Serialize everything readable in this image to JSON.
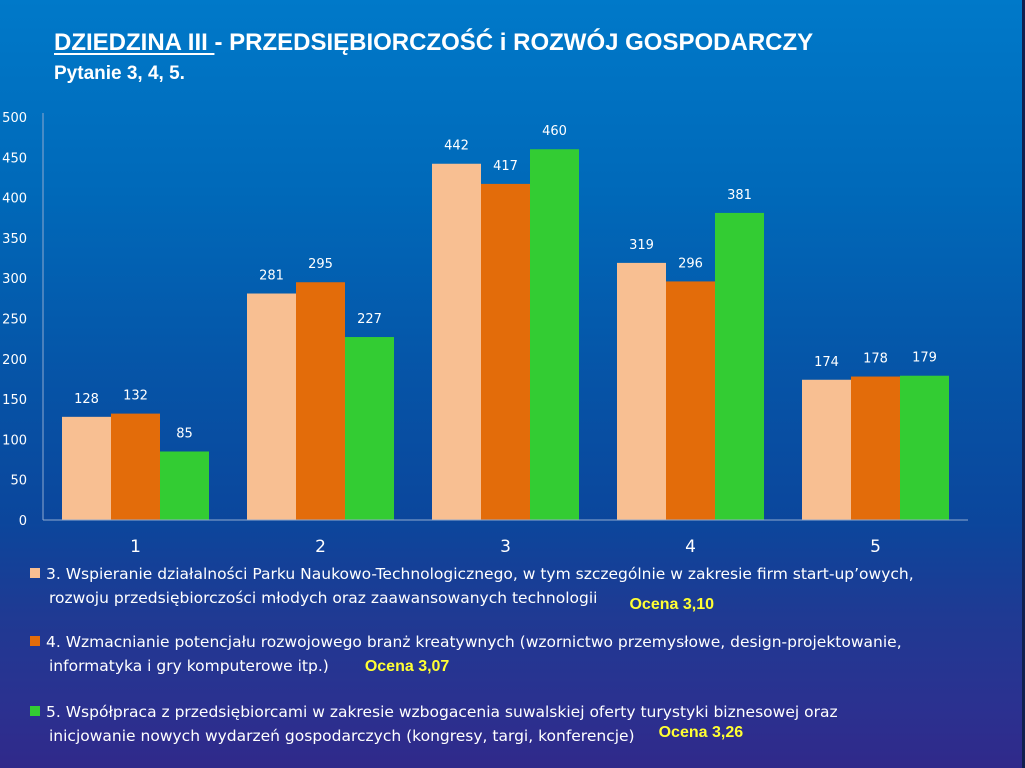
{
  "header": {
    "title_underlined": "DZIEDZINA III ",
    "title_rest": " - PRZEDSIĘBIORCZOŚĆ i ROZWÓJ GOSPODARCZY",
    "subtitle": "Pytanie  3, 4, 5."
  },
  "chart_data": {
    "type": "bar",
    "title": "",
    "xlabel": "",
    "ylabel": "",
    "categories": [
      "1",
      "2",
      "3",
      "4",
      "5"
    ],
    "ylim": [
      0,
      500
    ],
    "yticks": [
      "0",
      "50",
      "100",
      "150",
      "200",
      "250",
      "300",
      "350",
      "400",
      "450",
      "500"
    ],
    "grid": false,
    "legend_position": "bottom",
    "series": [
      {
        "name": "3. Wspieranie działalności Parku Naukowo-Technologicznego, w tym szczególnie w zakresie firm start-up’owych, rozwoju przedsiębiorczości młodych oraz zaawansowanych technologii",
        "line1": "3. Wspieranie działalności Parku Naukowo-Technologicznego, w tym szczególnie w zakresie firm start-up’owych,",
        "line2": "rozwoju przedsiębiorczości młodych oraz zaawansowanych technologii",
        "ocena": "Ocena 3,10",
        "color": "#f8bf92",
        "values": [
          128,
          281,
          442,
          319,
          174
        ]
      },
      {
        "name": "4. Wzmacnianie potencjału rozwojowego branż kreatywnych (wzornictwo przemysłowe, design-projektowanie, informatyka i gry komputerowe itp.)",
        "line1": "4. Wzmacnianie potencjału rozwojowego branż kreatywnych (wzornictwo przemysłowe, design-projektowanie,",
        "line2": "informatyka i gry komputerowe itp.)",
        "ocena": "Ocena 3,07",
        "color": "#e36c0a",
        "values": [
          132,
          295,
          417,
          296,
          178
        ]
      },
      {
        "name": "5. Współpraca z przedsiębiorcami w zakresie wzbogacenia suwalskiej oferty turystyki biznesowej oraz inicjowanie nowych wydarzeń gospodarczych (kongresy, targi, konferencje)",
        "line1": "5. Współpraca z przedsiębiorcami w zakresie wzbogacenia suwalskiej oferty turystyki biznesowej oraz",
        "line2": "inicjowanie nowych wydarzeń gospodarczych (kongresy, targi, konferencje)",
        "ocena": "Ocena 3,26",
        "color": "#33cc33",
        "values": [
          85,
          227,
          460,
          381,
          179
        ]
      }
    ]
  }
}
